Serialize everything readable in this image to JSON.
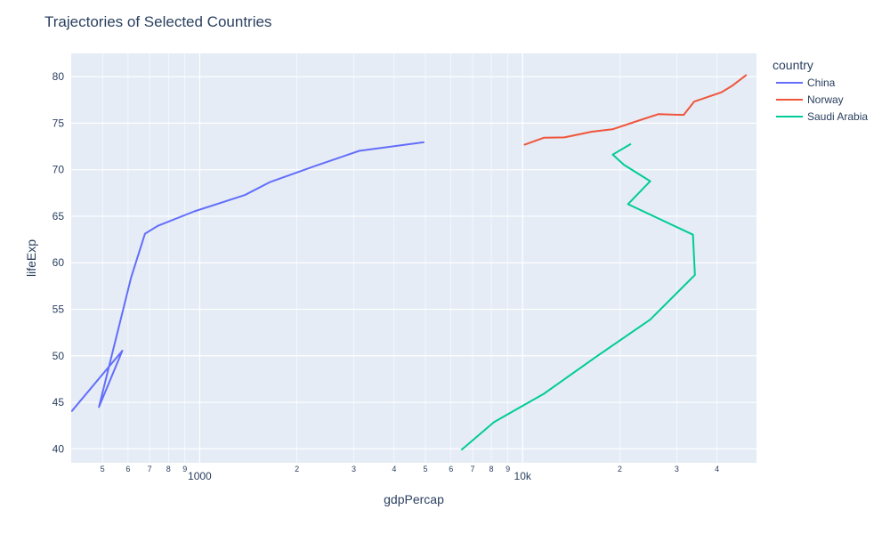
{
  "chart_data": {
    "type": "line",
    "title": "Trajectories of Selected Countries",
    "xlabel": "gdpPercap",
    "ylabel": "lifeExp",
    "x_scale": "log",
    "xlim": [
      400,
      53000
    ],
    "ylim": [
      38.5,
      82.5
    ],
    "grid": true,
    "legend": {
      "title": "country",
      "placement": "right"
    },
    "x_major_ticks": [
      {
        "value": 1000,
        "label": "1000"
      },
      {
        "value": 10000,
        "label": "10k"
      }
    ],
    "x_minor_ticks": [
      {
        "value": 500,
        "label": "5"
      },
      {
        "value": 600,
        "label": "6"
      },
      {
        "value": 700,
        "label": "7"
      },
      {
        "value": 800,
        "label": "8"
      },
      {
        "value": 900,
        "label": "9"
      },
      {
        "value": 2000,
        "label": "2"
      },
      {
        "value": 3000,
        "label": "3"
      },
      {
        "value": 4000,
        "label": "4"
      },
      {
        "value": 5000,
        "label": "5"
      },
      {
        "value": 6000,
        "label": "6"
      },
      {
        "value": 7000,
        "label": "7"
      },
      {
        "value": 8000,
        "label": "8"
      },
      {
        "value": 9000,
        "label": "9"
      },
      {
        "value": 20000,
        "label": "2"
      },
      {
        "value": 30000,
        "label": "3"
      },
      {
        "value": 40000,
        "label": "4"
      }
    ],
    "y_ticks": [
      40,
      45,
      50,
      55,
      60,
      65,
      70,
      75,
      80
    ],
    "series": [
      {
        "name": "China",
        "color": "#636efa",
        "points": [
          [
            400.4,
            44.0
          ],
          [
            575.99,
            50.549
          ],
          [
            487.67,
            44.501
          ],
          [
            612.71,
            58.381
          ],
          [
            676.9,
            63.119
          ],
          [
            741.24,
            63.967
          ],
          [
            962.42,
            65.525
          ],
          [
            1378.9,
            67.274
          ],
          [
            1655.78,
            68.69
          ],
          [
            2289.23,
            70.426
          ],
          [
            3119.28,
            72.028
          ],
          [
            4959.11,
            72.961
          ]
        ]
      },
      {
        "name": "Norway",
        "color": "#ef553b",
        "points": [
          [
            10095.42,
            72.67
          ],
          [
            11653.97,
            73.44
          ],
          [
            13450.4,
            73.47
          ],
          [
            16361.88,
            74.08
          ],
          [
            18965.06,
            74.34
          ],
          [
            23311.35,
            75.37
          ],
          [
            26298.64,
            75.97
          ],
          [
            31540.97,
            75.89
          ],
          [
            33965.66,
            77.32
          ],
          [
            41283.16,
            78.32
          ],
          [
            44683.98,
            79.05
          ],
          [
            49357.19,
            80.196
          ]
        ]
      },
      {
        "name": "Saudi Arabia",
        "color": "#00cc96",
        "points": [
          [
            6459.55,
            39.875
          ],
          [
            8157.59,
            42.868
          ],
          [
            11626.42,
            45.914
          ],
          [
            16903.05,
            49.901
          ],
          [
            24837.43,
            53.886
          ],
          [
            34167.76,
            58.69
          ],
          [
            33693.18,
            63.012
          ],
          [
            21198.26,
            66.295
          ],
          [
            24841.62,
            68.768
          ],
          [
            20586.69,
            70.533
          ],
          [
            19014.54,
            71.626
          ],
          [
            21654.83,
            72.777
          ]
        ]
      }
    ]
  }
}
